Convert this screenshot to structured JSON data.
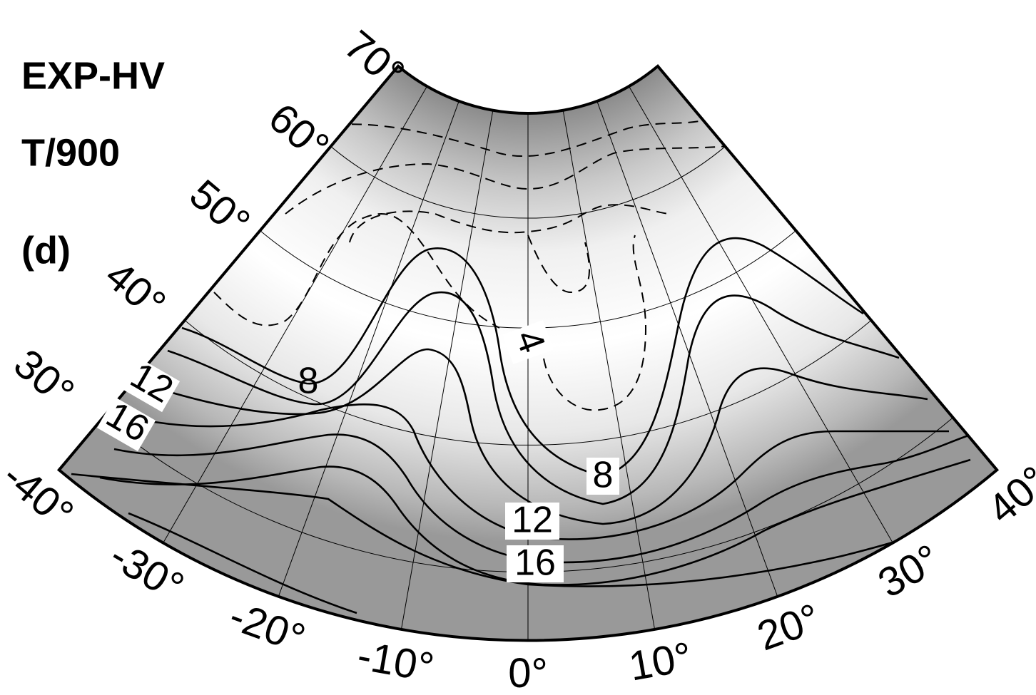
{
  "title_lines": [
    "EXP-HV",
    "T/900",
    "(d)"
  ],
  "map": {
    "lat_range": [
      25,
      70
    ],
    "lon_range": [
      -40,
      40
    ],
    "lat_ticks": [
      {
        "value": 70,
        "label": "70°"
      },
      {
        "value": 60,
        "label": "60°"
      },
      {
        "value": 50,
        "label": "50°"
      },
      {
        "value": 40,
        "label": "40°"
      },
      {
        "value": 30,
        "label": "30°"
      }
    ],
    "lon_ticks": [
      {
        "value": -40,
        "label": "-40°"
      },
      {
        "value": -30,
        "label": "-30°"
      },
      {
        "value": -20,
        "label": "-20°"
      },
      {
        "value": -10,
        "label": "-10°"
      },
      {
        "value": 0,
        "label": "0°"
      },
      {
        "value": 10,
        "label": "10°"
      },
      {
        "value": 20,
        "label": "20°"
      },
      {
        "value": 30,
        "label": "30°"
      },
      {
        "value": 40,
        "label": "40°"
      }
    ],
    "contour_labels": [
      "4",
      "8",
      "12",
      "16",
      "8",
      "12",
      "16"
    ]
  }
}
